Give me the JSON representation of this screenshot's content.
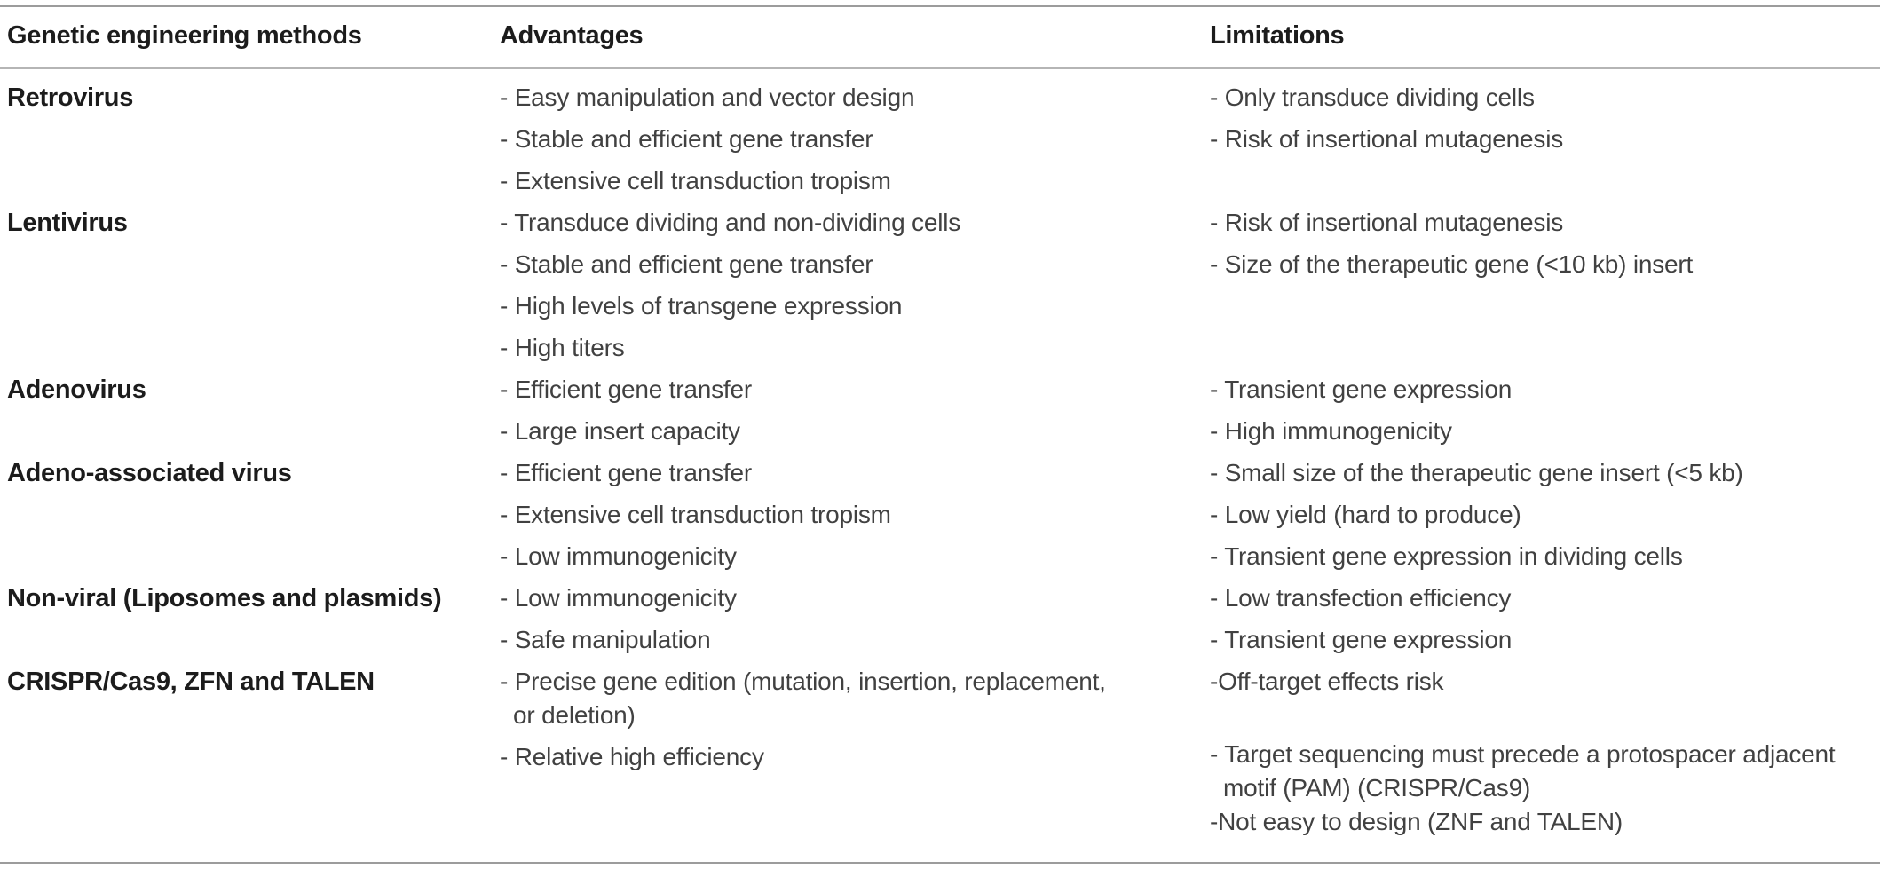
{
  "colors": {
    "background": "#ffffff",
    "rule_strong": "#9c9c9c",
    "rule_light": "#b5b5b5",
    "text_bold": "#1c1c1c",
    "text_body": "#414141"
  },
  "table": {
    "columns": [
      "Genetic engineering methods",
      "Advantages",
      "Limitations"
    ],
    "rows": [
      {
        "method": "Retrovirus",
        "advantages": [
          {
            "text": "- Easy manipulation and vector design"
          },
          {
            "text": "- Stable and efficient gene transfer"
          },
          {
            "text": "- Extensive cell transduction tropism"
          }
        ],
        "limitations": [
          {
            "text": "- Only transduce dividing cells"
          },
          {
            "text": "- Risk of insertional mutagenesis"
          }
        ]
      },
      {
        "method": "Lentivirus",
        "advantages": [
          {
            "text": "- Transduce dividing and non-dividing cells"
          },
          {
            "text": "- Stable and efficient gene transfer"
          },
          {
            "text": "- High levels of transgene expression"
          },
          {
            "text": "- High titers"
          }
        ],
        "limitations": [
          {
            "text": "- Risk of insertional mutagenesis"
          },
          {
            "text": "- Size of the therapeutic gene (<10 kb) insert"
          }
        ]
      },
      {
        "method": "Adenovirus",
        "advantages": [
          {
            "text": "- Efficient gene transfer"
          },
          {
            "text": "- Large insert capacity"
          }
        ],
        "limitations": [
          {
            "text": "- Transient gene expression"
          },
          {
            "text": "- High immunogenicity"
          }
        ]
      },
      {
        "method": "Adeno-associated virus",
        "advantages": [
          {
            "text": "- Efficient gene transfer"
          },
          {
            "text": "- Extensive cell transduction tropism"
          },
          {
            "text": "- Low immunogenicity"
          }
        ],
        "limitations": [
          {
            "text": "- Small size of the therapeutic gene insert (<5 kb)"
          },
          {
            "text": "- Low yield (hard to produce)"
          },
          {
            "text": "- Transient gene expression in dividing cells"
          }
        ]
      },
      {
        "method": "Non-viral (Liposomes and plasmids)",
        "advantages": [
          {
            "text": "- Low immunogenicity"
          },
          {
            "text": "- Safe manipulation"
          }
        ],
        "limitations": [
          {
            "text": "- Low transfection efficiency"
          },
          {
            "text": "- Transient gene expression"
          }
        ]
      },
      {
        "method": "CRISPR/Cas9, ZFN and TALEN",
        "advantages": [
          {
            "text": "- Precise gene edition (mutation, insertion, replacement,"
          },
          {
            "text": "or deletion)",
            "style": "cont"
          },
          {
            "text": "- Relative high efficiency"
          }
        ],
        "limitations": [
          {
            "text": "-Off-target effects risk"
          },
          {
            "text": "- Target sequencing must precede a protospacer adjacent",
            "style": "gap"
          },
          {
            "text": "motif (PAM) (CRISPR/Cas9)",
            "style": "cont"
          },
          {
            "text": "-Not easy to design (ZNF and TALEN)",
            "style": "tight"
          }
        ]
      }
    ]
  }
}
